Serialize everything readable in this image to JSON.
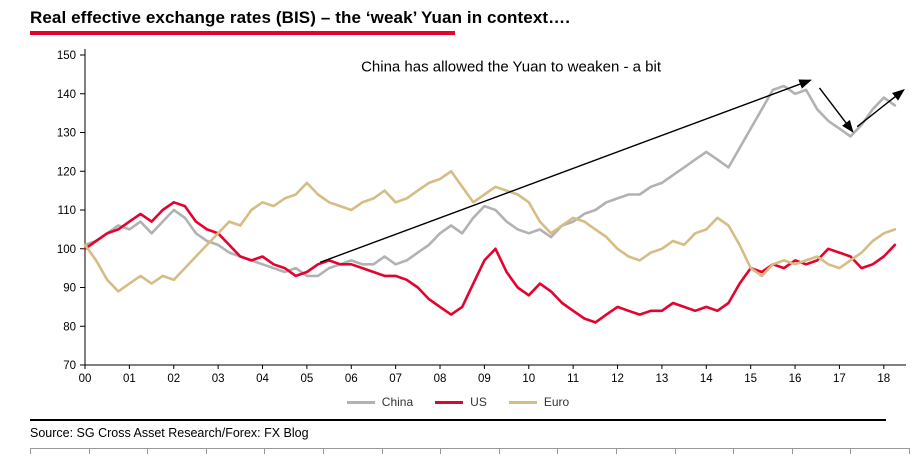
{
  "header": {
    "title": "Real effective exchange rates (BIS) – the ‘weak’ Yuan in context…."
  },
  "footer": {
    "source": "Source: SG Cross Asset Research/Forex: FX Blog"
  },
  "chart_data": {
    "type": "line",
    "title": "Real effective exchange rates (BIS) – the ‘weak’ Yuan in context….",
    "annotation": {
      "text": "China has allowed the Yuan to weaken - a bit",
      "x": 9.6,
      "y": 145.8
    },
    "ylim": [
      70,
      150
    ],
    "y_ticks": [
      70,
      80,
      90,
      100,
      110,
      120,
      130,
      140,
      150
    ],
    "x_ticks": [
      "00",
      "01",
      "02",
      "03",
      "04",
      "05",
      "06",
      "07",
      "08",
      "09",
      "10",
      "11",
      "12",
      "13",
      "14",
      "15",
      "16",
      "17",
      "18"
    ],
    "grid": false,
    "legend_position": "bottom",
    "axis_color": "#000000",
    "accent_red": "#e4032e",
    "x_start": 0,
    "x_step": 0.25,
    "series": [
      {
        "name": "China",
        "color": "#b2b2b2",
        "values": [
          101,
          102,
          104,
          106,
          105,
          107,
          104,
          107,
          110,
          108,
          104,
          102,
          101,
          99,
          98,
          97,
          96,
          95,
          94,
          95,
          93,
          93,
          95,
          96,
          97,
          96,
          96,
          98,
          96,
          97,
          99,
          101,
          104,
          106,
          104,
          108,
          111,
          110,
          107,
          105,
          104,
          105,
          103,
          106,
          107,
          109,
          110,
          112,
          113,
          114,
          114,
          116,
          117,
          119,
          121,
          123,
          125,
          123,
          121,
          126,
          131,
          136,
          141,
          142,
          140,
          141,
          136,
          133,
          131,
          129,
          132,
          136,
          139,
          137
        ]
      },
      {
        "name": "US",
        "color": "#e4032e",
        "values": [
          100,
          102,
          104,
          105,
          107,
          109,
          107,
          110,
          112,
          111,
          107,
          105,
          104,
          101,
          98,
          97,
          98,
          96,
          95,
          93,
          94,
          96,
          97,
          96,
          96,
          95,
          94,
          93,
          93,
          92,
          90,
          87,
          85,
          83,
          85,
          91,
          97,
          100,
          94,
          90,
          88,
          91,
          89,
          86,
          84,
          82,
          81,
          83,
          85,
          84,
          83,
          84,
          84,
          86,
          85,
          84,
          85,
          84,
          86,
          91,
          95,
          94,
          96,
          95,
          97,
          96,
          97,
          100,
          99,
          98,
          95,
          96,
          98,
          101
        ]
      },
      {
        "name": "Euro",
        "color": "#d5bd85",
        "values": [
          101,
          97,
          92,
          89,
          91,
          93,
          91,
          93,
          92,
          95,
          98,
          101,
          104,
          107,
          106,
          110,
          112,
          111,
          113,
          114,
          117,
          114,
          112,
          111,
          110,
          112,
          113,
          115,
          112,
          113,
          115,
          117,
          118,
          120,
          116,
          112,
          114,
          116,
          115,
          114,
          112,
          107,
          104,
          106,
          108,
          107,
          105,
          103,
          100,
          98,
          97,
          99,
          100,
          102,
          101,
          104,
          105,
          108,
          106,
          101,
          95,
          93,
          96,
          97,
          96,
          97,
          98,
          96,
          95,
          97,
          99,
          102,
          104,
          105
        ]
      }
    ],
    "arrows": [
      {
        "x1": 5.3,
        "y1": 96.5,
        "x2": 16.35,
        "y2": 143.5
      },
      {
        "x1": 16.55,
        "y1": 141.5,
        "x2": 17.3,
        "y2": 130.2
      },
      {
        "x1": 17.4,
        "y1": 131.5,
        "x2": 18.45,
        "y2": 141.0
      }
    ]
  }
}
